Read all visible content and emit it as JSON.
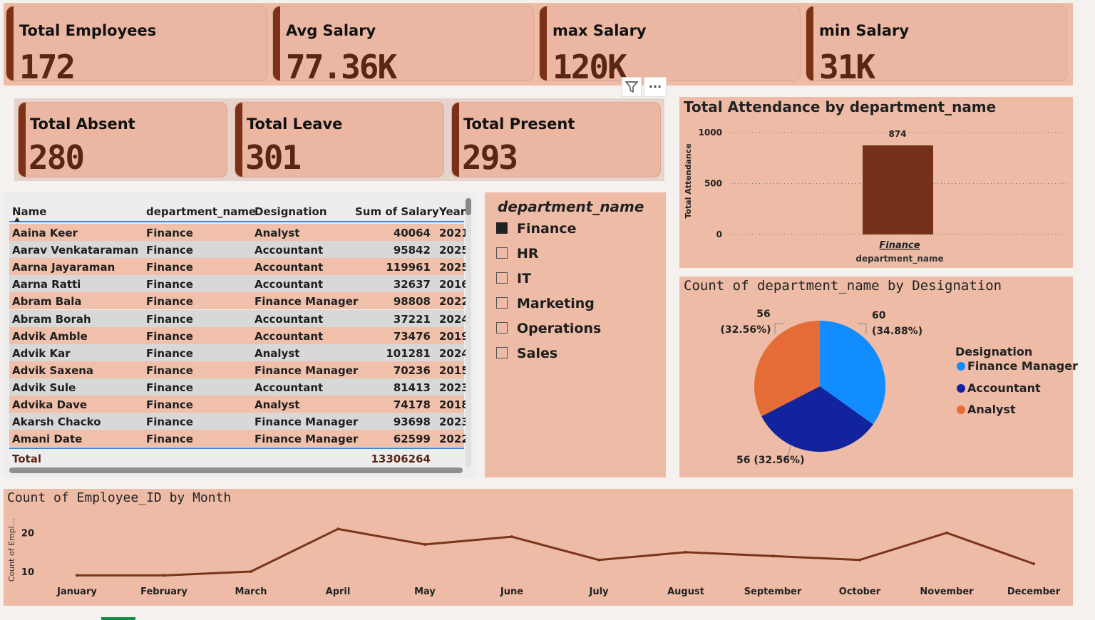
{
  "kpis_top": [
    {
      "label": "Total Employees",
      "value": "172"
    },
    {
      "label": "Avg Salary",
      "value": "77.36K"
    },
    {
      "label": "max Salary",
      "value": "120K"
    },
    {
      "label": "min Salary",
      "value": "31K"
    }
  ],
  "kpis_mid": [
    {
      "label": "Total Absent",
      "value": "280"
    },
    {
      "label": "Total Leave",
      "value": "301"
    },
    {
      "label": "Total Present",
      "value": "293"
    }
  ],
  "table": {
    "columns": [
      "Name",
      "department_name",
      "Designation",
      "Sum of Salary",
      "Year"
    ],
    "rows": [
      [
        "Aaina Keer",
        "Finance",
        "Analyst",
        "40064",
        "2021"
      ],
      [
        "Aarav Venkataraman",
        "Finance",
        "Accountant",
        "95842",
        "2025"
      ],
      [
        "Aarna Jayaraman",
        "Finance",
        "Accountant",
        "119961",
        "2025"
      ],
      [
        "Aarna Ratti",
        "Finance",
        "Accountant",
        "32637",
        "2016"
      ],
      [
        "Abram Bala",
        "Finance",
        "Finance Manager",
        "98808",
        "2022"
      ],
      [
        "Abram Borah",
        "Finance",
        "Accountant",
        "37221",
        "2024"
      ],
      [
        "Advik Amble",
        "Finance",
        "Accountant",
        "73476",
        "2019"
      ],
      [
        "Advik Kar",
        "Finance",
        "Analyst",
        "101281",
        "2024"
      ],
      [
        "Advik Saxena",
        "Finance",
        "Finance Manager",
        "70236",
        "2015"
      ],
      [
        "Advik Sule",
        "Finance",
        "Accountant",
        "81413",
        "2023"
      ],
      [
        "Advika Dave",
        "Finance",
        "Analyst",
        "74178",
        "2018"
      ],
      [
        "Akarsh Chacko",
        "Finance",
        "Finance Manager",
        "93698",
        "2023"
      ],
      [
        "Amani Date",
        "Finance",
        "Finance Manager",
        "62599",
        "2022"
      ]
    ],
    "total_label": "Total",
    "total_value": "13306264"
  },
  "slicer": {
    "title": "department_name",
    "items": [
      {
        "label": "Finance",
        "checked": true
      },
      {
        "label": "HR",
        "checked": false
      },
      {
        "label": "IT",
        "checked": false
      },
      {
        "label": "Marketing",
        "checked": false
      },
      {
        "label": "Operations",
        "checked": false
      },
      {
        "label": "Sales",
        "checked": false
      }
    ]
  },
  "visual_header": {
    "filter_icon": "filter-icon",
    "more_icon": "more-options-icon",
    "more_text": "..."
  },
  "colors": {
    "accent": "#7a3117",
    "bar": "#753119",
    "line": "#7b3419",
    "pie_finance_manager": "#118dff",
    "pie_accountant": "#12239e",
    "pie_analyst": "#e66c37",
    "header_rule": "#3b8ad9"
  },
  "chart_data": [
    {
      "type": "bar",
      "title": "Total Attendance by department_name",
      "xlabel": "department_name",
      "ylabel": "Total Attendance",
      "categories": [
        "Finance"
      ],
      "values": [
        874
      ],
      "data_labels": [
        "874"
      ],
      "ylim": [
        0,
        1000
      ],
      "yticks": [
        "0",
        "500",
        "1000"
      ],
      "grid": true
    },
    {
      "type": "pie",
      "title": "Count of department_name by Designation",
      "legend_title": "Designation",
      "legend_position": "right",
      "slices": [
        {
          "label": "Finance Manager",
          "value": 60,
          "pct": "34.88%",
          "data_label_value": "60",
          "data_label_pct": "(34.88%)"
        },
        {
          "label": "Accountant",
          "value": 56,
          "pct": "32.56%",
          "data_label": "56 (32.56%)"
        },
        {
          "label": "Analyst",
          "value": 56,
          "pct": "32.56%",
          "data_label_value": "56",
          "data_label_pct": "(32.56%)"
        }
      ]
    },
    {
      "type": "line",
      "title": "Count of Employee_ID by Month",
      "ylabel": "Count of Empl...",
      "x": [
        "January",
        "February",
        "March",
        "April",
        "May",
        "June",
        "July",
        "August",
        "September",
        "October",
        "November",
        "December"
      ],
      "values": [
        9,
        9,
        10,
        21,
        17,
        19,
        13,
        15,
        14,
        13,
        20,
        12
      ],
      "yticks": [
        "10",
        "20"
      ],
      "ylim": [
        3,
        24
      ]
    }
  ]
}
